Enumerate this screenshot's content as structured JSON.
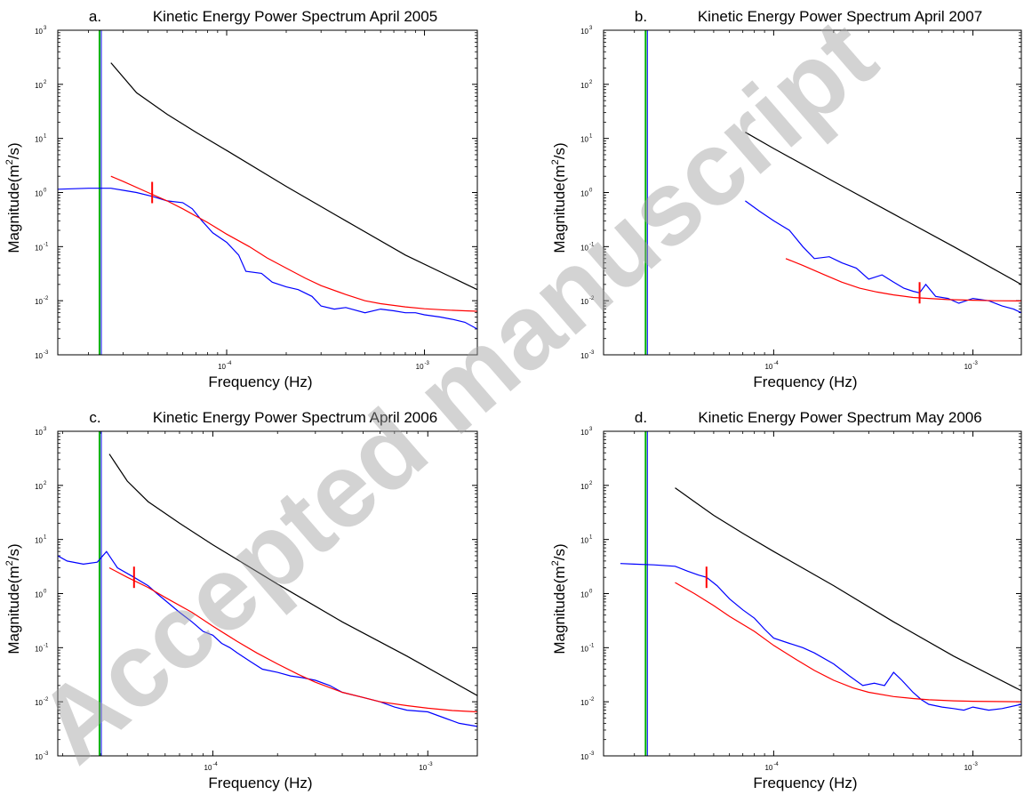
{
  "watermark": "Accepted manuscript",
  "colors": {
    "spectrum": "#0000ff",
    "fit": "#ff0000",
    "reference": "#000000",
    "green": "#00b000",
    "marker": "#ff0000",
    "watermark": "#a0a0a0"
  },
  "chart_data": [
    {
      "id": "a",
      "type": "line",
      "letter": "a.",
      "title": "Kinetic Energy Power Spectrum April 2005",
      "xlabel": "Frequency (Hz)",
      "ylabel_pre": "Magnitude(m",
      "ylabel_sup": "2",
      "ylabel_post": "/s)",
      "xscale": "log",
      "yscale": "log",
      "xlim": [
        1.4e-05,
        0.00185
      ],
      "ylim": [
        0.001,
        1000
      ],
      "xticks": [
        {
          "v": 0.0001,
          "base": "10",
          "exp": "-4"
        },
        {
          "v": 0.001,
          "base": "10",
          "exp": "-3"
        }
      ],
      "yticks": [
        {
          "v": 0.001,
          "base": "10",
          "exp": "-3"
        },
        {
          "v": 0.01,
          "base": "10",
          "exp": "-2"
        },
        {
          "v": 0.1,
          "base": "10",
          "exp": "-1"
        },
        {
          "v": 1,
          "base": "10",
          "exp": "0"
        },
        {
          "v": 10,
          "base": "10",
          "exp": "1"
        },
        {
          "v": 100,
          "base": "10",
          "exp": "2"
        },
        {
          "v": 1000,
          "base": "10",
          "exp": "3"
        }
      ],
      "vline_x": 2.3e-05,
      "marker": {
        "x": 4.2e-05,
        "y": 1.0
      },
      "series": [
        {
          "role": "spectrum",
          "x": [
            1.4e-05,
            2e-05,
            2.6e-05,
            3e-05,
            3.5e-05,
            4.2e-05,
            5e-05,
            6e-05,
            6.7e-05,
            7.5e-05,
            8.5e-05,
            0.0001,
            0.000115,
            0.000125,
            0.00015,
            0.00017,
            0.0002,
            0.00023,
            0.00027,
            0.0003,
            0.00035,
            0.0004,
            0.0005,
            0.0006,
            0.0007,
            0.0008,
            0.0009,
            0.001,
            0.0012,
            0.0014,
            0.0016,
            0.00185
          ],
          "y": [
            1.15,
            1.2,
            1.2,
            1.1,
            1.0,
            0.85,
            0.7,
            0.65,
            0.5,
            0.3,
            0.18,
            0.12,
            0.07,
            0.035,
            0.032,
            0.022,
            0.018,
            0.016,
            0.012,
            0.008,
            0.007,
            0.0075,
            0.006,
            0.007,
            0.0065,
            0.006,
            0.006,
            0.0055,
            0.005,
            0.0045,
            0.004,
            0.003
          ]
        },
        {
          "role": "fit",
          "x": [
            2.6e-05,
            3e-05,
            4e-05,
            5e-05,
            6e-05,
            8e-05,
            0.0001,
            0.00013,
            0.00016,
            0.0002,
            0.00025,
            0.0003,
            0.0004,
            0.0005,
            0.0006,
            0.0008,
            0.001,
            0.0013,
            0.0016,
            0.00185
          ],
          "y": [
            2.0,
            1.6,
            1.0,
            0.7,
            0.5,
            0.28,
            0.17,
            0.1,
            0.062,
            0.04,
            0.026,
            0.019,
            0.013,
            0.01,
            0.0088,
            0.0077,
            0.0071,
            0.0067,
            0.0065,
            0.0064
          ]
        },
        {
          "role": "reference",
          "x": [
            2.6e-05,
            3.5e-05,
            5e-05,
            7e-05,
            0.0001,
            0.0002,
            0.0004,
            0.0008,
            0.00185
          ],
          "y": [
            250,
            70,
            28,
            13,
            6,
            1.3,
            0.3,
            0.07,
            0.016
          ]
        }
      ]
    },
    {
      "id": "b",
      "type": "line",
      "letter": "b.",
      "title": "Kinetic Energy Power Spectrum April 2007",
      "xlabel": "Frequency (Hz)",
      "ylabel_pre": "Magnitude(m",
      "ylabel_sup": "2",
      "ylabel_post": "/s)",
      "xscale": "log",
      "yscale": "log",
      "xlim": [
        1.4e-05,
        0.00175
      ],
      "ylim": [
        0.001,
        1000
      ],
      "xticks": [
        {
          "v": 0.0001,
          "base": "10",
          "exp": "-4"
        },
        {
          "v": 0.001,
          "base": "10",
          "exp": "-3"
        }
      ],
      "yticks": [
        {
          "v": 0.001,
          "base": "10",
          "exp": "-3"
        },
        {
          "v": 0.01,
          "base": "10",
          "exp": "-2"
        },
        {
          "v": 0.1,
          "base": "10",
          "exp": "-1"
        },
        {
          "v": 1,
          "base": "10",
          "exp": "0"
        },
        {
          "v": 10,
          "base": "10",
          "exp": "1"
        },
        {
          "v": 100,
          "base": "10",
          "exp": "2"
        },
        {
          "v": 1000,
          "base": "10",
          "exp": "3"
        }
      ],
      "vline_x": 2.3e-05,
      "marker": {
        "x": 0.00054,
        "y": 0.014
      },
      "series": [
        {
          "role": "spectrum",
          "x": [
            7.2e-05,
            8.5e-05,
            0.0001,
            0.00012,
            0.00014,
            0.00016,
            0.00019,
            0.00022,
            0.00026,
            0.0003,
            0.00035,
            0.0004,
            0.00045,
            0.0005,
            0.00054,
            0.00058,
            0.00065,
            0.00075,
            0.00085,
            0.001,
            0.0012,
            0.0014,
            0.0016,
            0.00175
          ],
          "y": [
            0.7,
            0.45,
            0.3,
            0.2,
            0.1,
            0.06,
            0.065,
            0.05,
            0.04,
            0.025,
            0.03,
            0.022,
            0.017,
            0.015,
            0.014,
            0.02,
            0.012,
            0.011,
            0.009,
            0.011,
            0.01,
            0.008,
            0.007,
            0.006
          ]
        },
        {
          "role": "fit",
          "x": [
            0.000115,
            0.00014,
            0.00018,
            0.00022,
            0.00027,
            0.00033,
            0.0004,
            0.0005,
            0.0006,
            0.00075,
            0.001,
            0.0013,
            0.00175
          ],
          "y": [
            0.06,
            0.045,
            0.03,
            0.022,
            0.017,
            0.0145,
            0.0128,
            0.0115,
            0.011,
            0.0105,
            0.0102,
            0.01,
            0.0099
          ]
        },
        {
          "role": "reference",
          "x": [
            7.2e-05,
            0.0001,
            0.0002,
            0.0004,
            0.0008,
            0.00175
          ],
          "y": [
            13,
            6.5,
            1.6,
            0.4,
            0.1,
            0.02
          ]
        }
      ]
    },
    {
      "id": "c",
      "type": "line",
      "letter": "c.",
      "title": "Kinetic Energy Power Spectrum April 2006",
      "xlabel": "Frequency (Hz)",
      "ylabel_pre": "Magnitude(m",
      "ylabel_sup": "2",
      "ylabel_post": "/s)",
      "xscale": "log",
      "yscale": "log",
      "xlim": [
        1.9e-05,
        0.0017
      ],
      "ylim": [
        0.001,
        1000
      ],
      "xticks": [
        {
          "v": 0.0001,
          "base": "10",
          "exp": "-4"
        },
        {
          "v": 0.001,
          "base": "10",
          "exp": "-3"
        }
      ],
      "yticks": [
        {
          "v": 0.001,
          "base": "10",
          "exp": "-3"
        },
        {
          "v": 0.01,
          "base": "10",
          "exp": "-2"
        },
        {
          "v": 0.1,
          "base": "10",
          "exp": "-1"
        },
        {
          "v": 1,
          "base": "10",
          "exp": "0"
        },
        {
          "v": 10,
          "base": "10",
          "exp": "1"
        },
        {
          "v": 100,
          "base": "10",
          "exp": "2"
        },
        {
          "v": 1000,
          "base": "10",
          "exp": "3"
        }
      ],
      "vline_x": 3e-05,
      "marker": {
        "x": 4.3e-05,
        "y": 2.0
      },
      "series": [
        {
          "role": "spectrum",
          "x": [
            1.9e-05,
            2.1e-05,
            2.5e-05,
            2.9e-05,
            3.2e-05,
            3.6e-05,
            4.3e-05,
            5e-05,
            5.5e-05,
            6e-05,
            7e-05,
            8e-05,
            9e-05,
            0.0001,
            0.00011,
            0.00012,
            0.00013,
            0.00015,
            0.00017,
            0.0002,
            0.00023,
            0.00026,
            0.0003,
            0.00035,
            0.0004,
            0.0005,
            0.0006,
            0.0007,
            0.0008,
            0.001,
            0.0012,
            0.0014,
            0.0017
          ],
          "y": [
            5,
            4,
            3.5,
            3.8,
            6,
            3,
            2.0,
            1.4,
            1.0,
            0.75,
            0.45,
            0.3,
            0.2,
            0.17,
            0.12,
            0.1,
            0.08,
            0.055,
            0.04,
            0.035,
            0.03,
            0.028,
            0.025,
            0.02,
            0.015,
            0.012,
            0.01,
            0.008,
            0.007,
            0.0065,
            0.005,
            0.004,
            0.0035
          ]
        },
        {
          "role": "fit",
          "x": [
            3.3e-05,
            4e-05,
            5e-05,
            6e-05,
            8e-05,
            0.0001,
            0.00013,
            0.00016,
            0.0002,
            0.00025,
            0.0003,
            0.0004,
            0.0005,
            0.0006,
            0.0008,
            0.001,
            0.0013,
            0.0017
          ],
          "y": [
            3.0,
            2.0,
            1.3,
            0.85,
            0.45,
            0.25,
            0.13,
            0.08,
            0.05,
            0.032,
            0.023,
            0.015,
            0.012,
            0.01,
            0.0085,
            0.0076,
            0.0069,
            0.0065
          ]
        },
        {
          "role": "reference",
          "x": [
            3.3e-05,
            4e-05,
            5e-05,
            7e-05,
            0.0001,
            0.0002,
            0.0004,
            0.0008,
            0.0017
          ],
          "y": [
            380,
            120,
            50,
            20,
            8,
            1.5,
            0.3,
            0.07,
            0.013
          ]
        }
      ]
    },
    {
      "id": "d",
      "type": "line",
      "letter": "d.",
      "title": "Kinetic Energy Power Spectrum May 2006",
      "xlabel": "Frequency (Hz)",
      "ylabel_pre": "Magnitude(m",
      "ylabel_sup": "2",
      "ylabel_post": "/s)",
      "xscale": "log",
      "yscale": "log",
      "xlim": [
        1.4e-05,
        0.00175
      ],
      "ylim": [
        0.001,
        1000
      ],
      "xticks": [
        {
          "v": 0.0001,
          "base": "10",
          "exp": "-4"
        },
        {
          "v": 0.001,
          "base": "10",
          "exp": "-3"
        }
      ],
      "yticks": [
        {
          "v": 0.001,
          "base": "10",
          "exp": "-3"
        },
        {
          "v": 0.01,
          "base": "10",
          "exp": "-2"
        },
        {
          "v": 0.1,
          "base": "10",
          "exp": "-1"
        },
        {
          "v": 1,
          "base": "10",
          "exp": "0"
        },
        {
          "v": 10,
          "base": "10",
          "exp": "1"
        },
        {
          "v": 100,
          "base": "10",
          "exp": "2"
        },
        {
          "v": 1000,
          "base": "10",
          "exp": "3"
        }
      ],
      "vline_x": 2.3e-05,
      "marker": {
        "x": 4.6e-05,
        "y": 2.0
      },
      "series": [
        {
          "role": "spectrum",
          "x": [
            1.7e-05,
            2e-05,
            2.5e-05,
            3.2e-05,
            3.7e-05,
            4.2e-05,
            4.6e-05,
            5.2e-05,
            6e-05,
            7e-05,
            8e-05,
            9e-05,
            0.0001,
            0.00012,
            0.00014,
            0.00016,
            0.0002,
            0.00024,
            0.00028,
            0.00032,
            0.00036,
            0.0004,
            0.00044,
            0.0005,
            0.00055,
            0.0006,
            0.0007,
            0.0008,
            0.0009,
            0.001,
            0.0012,
            0.0014,
            0.00175
          ],
          "y": [
            3.6,
            3.5,
            3.4,
            3.2,
            2.6,
            2.2,
            2.0,
            1.4,
            0.8,
            0.5,
            0.35,
            0.22,
            0.15,
            0.12,
            0.1,
            0.08,
            0.05,
            0.03,
            0.02,
            0.022,
            0.02,
            0.035,
            0.025,
            0.015,
            0.011,
            0.009,
            0.008,
            0.0075,
            0.007,
            0.008,
            0.007,
            0.0075,
            0.009
          ]
        },
        {
          "role": "fit",
          "x": [
            3.2e-05,
            4e-05,
            5e-05,
            6e-05,
            8e-05,
            0.0001,
            0.00013,
            0.00016,
            0.0002,
            0.00025,
            0.0003,
            0.0004,
            0.0005,
            0.0006,
            0.0008,
            0.001,
            0.0013,
            0.00175
          ],
          "y": [
            1.6,
            1.0,
            0.6,
            0.38,
            0.2,
            0.11,
            0.06,
            0.038,
            0.025,
            0.018,
            0.015,
            0.0125,
            0.0115,
            0.0109,
            0.0104,
            0.0102,
            0.0101,
            0.01
          ]
        },
        {
          "role": "reference",
          "x": [
            3.2e-05,
            4e-05,
            5e-05,
            7e-05,
            0.0001,
            0.0002,
            0.0004,
            0.0008,
            0.00175
          ],
          "y": [
            90,
            50,
            28,
            13,
            6,
            1.4,
            0.3,
            0.07,
            0.016
          ]
        }
      ]
    }
  ]
}
